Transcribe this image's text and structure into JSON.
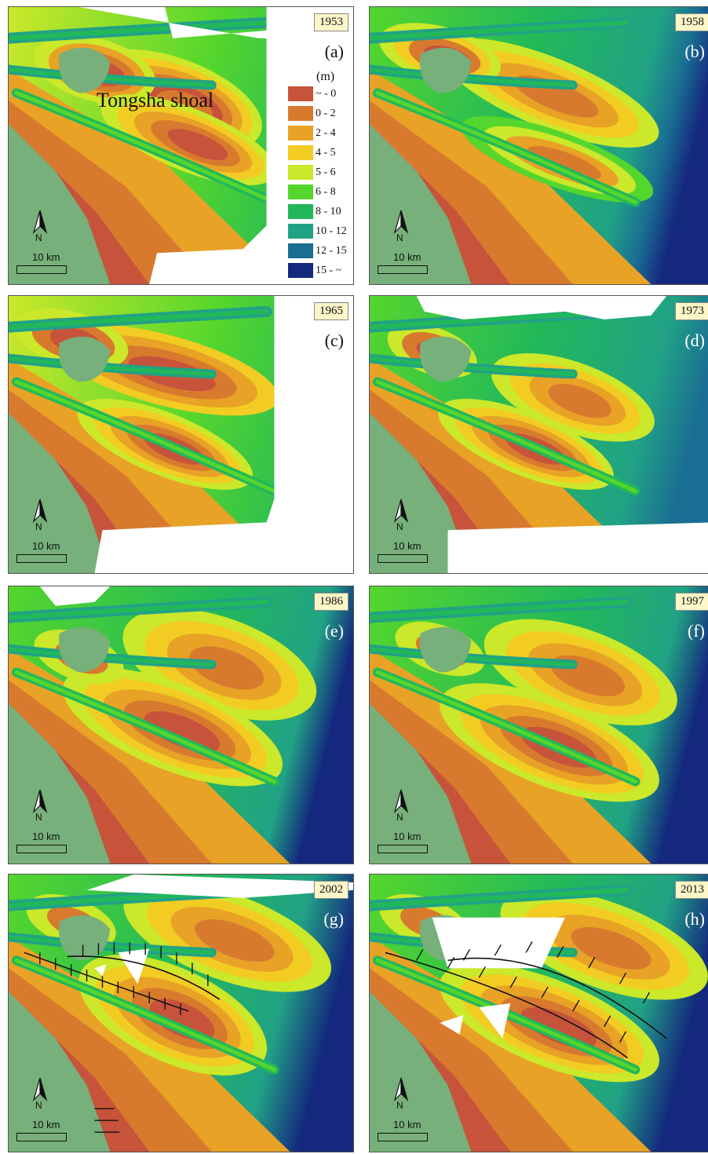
{
  "map": {
    "panels": [
      {
        "year": "1953",
        "label": "(a)"
      },
      {
        "year": "1958",
        "label": "(b)"
      },
      {
        "year": "1965",
        "label": "(c)"
      },
      {
        "year": "1973",
        "label": "(d)"
      },
      {
        "year": "1986",
        "label": "(e)"
      },
      {
        "year": "1997",
        "label": "(f)"
      },
      {
        "year": "2002",
        "label": "(g)"
      },
      {
        "year": "2013",
        "label": "(h)"
      }
    ],
    "place_name": "Tongsha shoal",
    "north_label": "N",
    "scale_label": "10 km",
    "legend": {
      "unit": "(m)",
      "items": [
        {
          "label": "~ - 0",
          "color": "#c7533b"
        },
        {
          "label": "0 - 2",
          "color": "#d87a2e"
        },
        {
          "label": "2 - 4",
          "color": "#e8a226"
        },
        {
          "label": "4 - 5",
          "color": "#f2cc22"
        },
        {
          "label": "5 - 6",
          "color": "#cbe82a"
        },
        {
          "label": "6 - 8",
          "color": "#55d62d"
        },
        {
          "label": "8 - 10",
          "color": "#22b85a"
        },
        {
          "label": "10 - 12",
          "color": "#21a285"
        },
        {
          "label": "12 - 15",
          "color": "#1a6e93"
        },
        {
          "label": "15 - ~",
          "color": "#14287e"
        }
      ]
    },
    "land_color": "#77b07a"
  }
}
